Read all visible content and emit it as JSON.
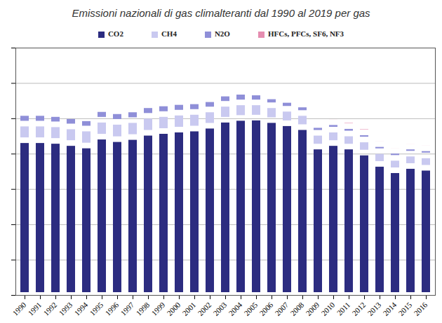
{
  "chart_data": {
    "type": "bar",
    "stacked": true,
    "title": "Emissioni nazionali di gas climalteranti dal 1990 al 2019 per gas",
    "categories": [
      "1990",
      "1991",
      "1992",
      "1993",
      "1994",
      "1995",
      "1996",
      "1997",
      "1998",
      "1999",
      "2000",
      "2001",
      "2002",
      "2003",
      "2004",
      "2005",
      "2006",
      "2007",
      "2008",
      "2009",
      "2010",
      "2011",
      "2012",
      "2013",
      "2014",
      "2015",
      "2016"
    ],
    "series": [
      {
        "name": "CO2",
        "color": "#2c2c80",
        "values": [
          438,
          438,
          436,
          430,
          423,
          448,
          441,
          447,
          459,
          464,
          468,
          471,
          479,
          496,
          501,
          502,
          495,
          486,
          475,
          420,
          430,
          420,
          403,
          371,
          353,
          365,
          360
        ]
      },
      {
        "name": "CH4",
        "color": "#c9c9f0",
        "values": [
          47,
          47,
          47,
          47,
          48,
          48,
          49,
          48,
          48,
          48,
          48,
          47,
          46,
          45,
          44,
          43,
          42,
          41,
          40,
          39,
          38,
          37,
          37,
          36,
          35,
          35,
          35
        ]
      },
      {
        "name": "N2O",
        "color": "#8f8fd8",
        "values": [
          30,
          30,
          29,
          29,
          29,
          30,
          30,
          30,
          30,
          30,
          30,
          30,
          29,
          29,
          30,
          28,
          25,
          25,
          24,
          22,
          21,
          21,
          20,
          20,
          20,
          20,
          20
        ]
      },
      {
        "name": "HFCs, PFCs, SF6, NF3",
        "color": "#e58db0",
        "values": [
          4,
          3,
          3,
          3,
          3,
          3,
          3,
          3,
          4,
          4,
          5,
          6,
          7,
          9,
          10,
          11,
          12,
          13,
          14,
          15,
          16,
          17,
          17,
          16,
          16,
          16,
          16
        ]
      }
    ],
    "ylim": [
      0,
      700
    ],
    "yticks": [
      0,
      100,
      200,
      300,
      400,
      500,
      600,
      700
    ],
    "grid": true,
    "legend": "top",
    "tick_labels": "x"
  }
}
